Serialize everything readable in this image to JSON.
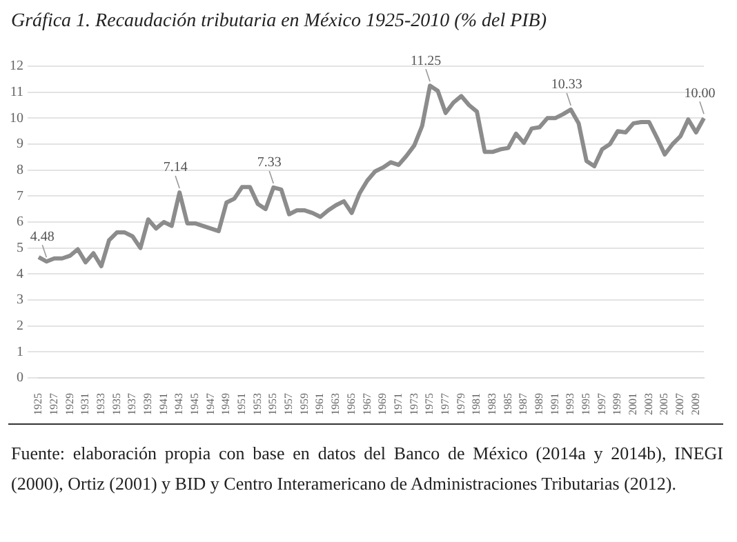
{
  "chart_data": {
    "type": "line",
    "title": "Gráfica 1. Recaudación tributaria en México 1925-2010 (% del PIB)",
    "categories": [
      "1925",
      null,
      "1927",
      null,
      "1929",
      null,
      "1931",
      null,
      "1933",
      null,
      "1935",
      null,
      "1937",
      null,
      "1939",
      null,
      "1941",
      null,
      "1943",
      null,
      "1945",
      null,
      "1947",
      null,
      "1949",
      null,
      "1951",
      null,
      "1953",
      null,
      "1955",
      null,
      "1957",
      null,
      "1959",
      null,
      "1961",
      null,
      "1963",
      null,
      "1965",
      null,
      "1967",
      null,
      "1969",
      null,
      "1971",
      null,
      "1973",
      null,
      "1975",
      null,
      "1977",
      null,
      "1979",
      null,
      "1981",
      null,
      "1983",
      null,
      "1985",
      null,
      "1987",
      null,
      "1989",
      null,
      "1991",
      null,
      "1993",
      null,
      "1995",
      null,
      "1997",
      null,
      "1999",
      null,
      "2001",
      null,
      "2003",
      null,
      "2005",
      null,
      "2007",
      null,
      "2009",
      null
    ],
    "series": [
      {
        "color": "#8c8c8c",
        "values": [
          4.65,
          4.48,
          4.6,
          4.6,
          4.7,
          4.95,
          4.45,
          4.8,
          4.3,
          5.3,
          5.6,
          5.6,
          5.45,
          5.0,
          6.1,
          5.75,
          6.0,
          5.85,
          7.14,
          5.95,
          5.95,
          5.85,
          5.75,
          5.65,
          6.75,
          6.9,
          7.35,
          7.35,
          6.7,
          6.5,
          7.33,
          7.25,
          6.3,
          6.45,
          6.45,
          6.35,
          6.2,
          6.45,
          6.65,
          6.8,
          6.35,
          7.1,
          7.6,
          7.95,
          8.1,
          8.3,
          8.2,
          8.55,
          8.95,
          9.7,
          11.25,
          11.05,
          10.2,
          10.6,
          10.85,
          10.5,
          10.25,
          8.7,
          8.7,
          8.8,
          8.85,
          9.4,
          9.05,
          9.6,
          9.65,
          10.0,
          10.0,
          10.15,
          10.33,
          9.8,
          8.35,
          8.15,
          8.8,
          9.0,
          9.5,
          9.45,
          9.8,
          9.85,
          9.85,
          9.25,
          8.6,
          9.0,
          9.3,
          9.95,
          9.45,
          10.0
        ],
        "value_labels": [
          null,
          "4.48",
          null,
          null,
          null,
          null,
          null,
          null,
          null,
          null,
          null,
          null,
          null,
          null,
          null,
          null,
          null,
          null,
          "7.14",
          null,
          null,
          null,
          null,
          null,
          null,
          null,
          null,
          null,
          null,
          null,
          "7.33",
          null,
          null,
          null,
          null,
          null,
          null,
          null,
          null,
          null,
          null,
          null,
          null,
          null,
          null,
          null,
          null,
          null,
          null,
          null,
          "11.25",
          null,
          null,
          null,
          null,
          null,
          null,
          null,
          null,
          null,
          null,
          null,
          null,
          null,
          null,
          null,
          null,
          null,
          "10.33",
          null,
          null,
          null,
          null,
          null,
          null,
          null,
          null,
          null,
          null,
          null,
          null,
          null,
          null,
          null,
          null,
          "10.00"
        ]
      }
    ],
    "ylim": [
      0,
      12
    ],
    "yticks": [
      0,
      1,
      2,
      3,
      4,
      5,
      6,
      7,
      8,
      9,
      10,
      11,
      12
    ],
    "grid": "y",
    "legend": false,
    "marker": "none",
    "line_style": "solid",
    "annotations": [
      "Fuente: elaboración propia con base en datos del Banco de México (2014a y 2014b), INEGI (2000), Ortiz (2001) y BID y Centro Interamericano de Administraciones Tributarias (2012)."
    ]
  }
}
